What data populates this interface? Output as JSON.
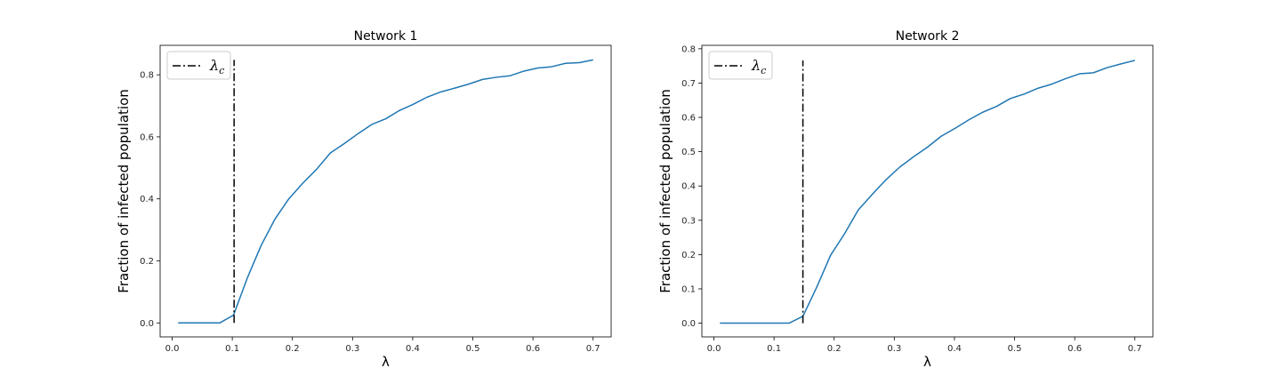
{
  "chart_data": [
    {
      "type": "line",
      "title": "Network 1",
      "xlabel": "λ",
      "ylabel": "Fraction of infected population",
      "xlim": [
        -0.02,
        0.73
      ],
      "ylim": [
        -0.045,
        0.895
      ],
      "xticks": [
        0.0,
        0.1,
        0.2,
        0.3,
        0.4,
        0.5,
        0.6,
        0.7
      ],
      "xtick_labels": [
        "0.0",
        "0.1",
        "0.2",
        "0.3",
        "0.4",
        "0.5",
        "0.6",
        "0.7"
      ],
      "yticks": [
        0.0,
        0.2,
        0.4,
        0.6,
        0.8
      ],
      "ytick_labels": [
        "0.0",
        "0.2",
        "0.4",
        "0.6",
        "0.8"
      ],
      "grid": false,
      "legend": {
        "position": "top-left",
        "entries": [
          {
            "label": "λ",
            "sub": "c",
            "style": "dash-dot",
            "color": "#000000"
          }
        ]
      },
      "series": [
        {
          "color": "#1f77b4",
          "x": [
            0.01,
            0.033,
            0.056,
            0.079,
            0.102,
            0.125,
            0.148,
            0.171,
            0.194,
            0.217,
            0.24,
            0.263,
            0.286,
            0.309,
            0.332,
            0.355,
            0.378,
            0.401,
            0.424,
            0.447,
            0.47,
            0.493,
            0.516,
            0.539,
            0.562,
            0.585,
            0.608,
            0.631,
            0.654,
            0.677,
            0.7
          ],
          "y": [
            0.0,
            0.0,
            0.0,
            0.0,
            0.025,
            0.145,
            0.25,
            0.335,
            0.4,
            0.45,
            0.495,
            0.548,
            0.578,
            0.61,
            0.64,
            0.658,
            0.685,
            0.705,
            0.728,
            0.745,
            0.757,
            0.77,
            0.785,
            0.792,
            0.797,
            0.812,
            0.822,
            0.826,
            0.837,
            0.839,
            0.848
          ]
        }
      ],
      "vline": {
        "x": 0.103,
        "y0": 0.0,
        "y1": 0.848,
        "color": "#000000",
        "style": "dash-dot"
      }
    },
    {
      "type": "line",
      "title": "Network 2",
      "xlabel": "λ",
      "ylabel": "Fraction of infected population",
      "xlim": [
        -0.02,
        0.73
      ],
      "ylim": [
        -0.04,
        0.81
      ],
      "xticks": [
        0.0,
        0.1,
        0.2,
        0.3,
        0.4,
        0.5,
        0.6,
        0.7
      ],
      "xtick_labels": [
        "0.0",
        "0.1",
        "0.2",
        "0.3",
        "0.4",
        "0.5",
        "0.6",
        "0.7"
      ],
      "yticks": [
        0.0,
        0.1,
        0.2,
        0.3,
        0.4,
        0.5,
        0.6,
        0.7,
        0.8
      ],
      "ytick_labels": [
        "0.0",
        "0.1",
        "0.2",
        "0.3",
        "0.4",
        "0.5",
        "0.6",
        "0.7",
        "0.8"
      ],
      "grid": false,
      "legend": {
        "position": "top-left",
        "entries": [
          {
            "label": "λ",
            "sub": "c",
            "style": "dash-dot",
            "color": "#000000"
          }
        ]
      },
      "series": [
        {
          "color": "#1f77b4",
          "x": [
            0.01,
            0.033,
            0.056,
            0.079,
            0.102,
            0.125,
            0.148,
            0.171,
            0.194,
            0.217,
            0.24,
            0.263,
            0.286,
            0.309,
            0.332,
            0.355,
            0.378,
            0.401,
            0.424,
            0.447,
            0.47,
            0.493,
            0.516,
            0.539,
            0.562,
            0.585,
            0.608,
            0.631,
            0.654,
            0.677,
            0.7
          ],
          "y": [
            0.0,
            0.0,
            0.0,
            0.0,
            0.0,
            0.0,
            0.02,
            0.105,
            0.198,
            0.26,
            0.33,
            0.375,
            0.418,
            0.455,
            0.485,
            0.513,
            0.545,
            0.568,
            0.593,
            0.615,
            0.632,
            0.655,
            0.668,
            0.685,
            0.697,
            0.713,
            0.727,
            0.73,
            0.745,
            0.756,
            0.766
          ]
        }
      ],
      "vline": {
        "x": 0.148,
        "y0": 0.0,
        "y1": 0.766,
        "color": "#000000",
        "style": "dash-dot"
      }
    }
  ]
}
